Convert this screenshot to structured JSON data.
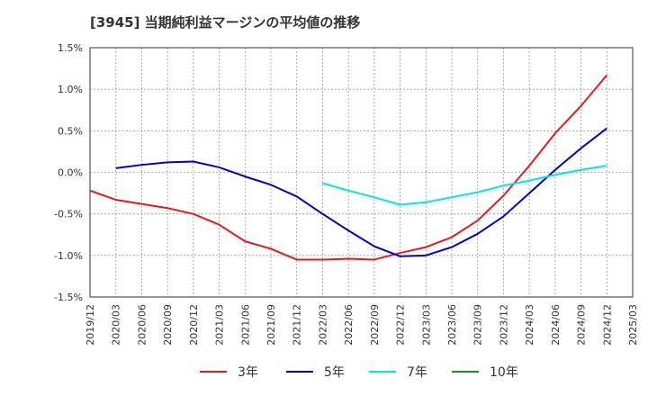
{
  "title": "[3945]  当期純利益マージンの平均値の推移",
  "chart_data": {
    "type": "line",
    "title": "[3945]  当期純利益マージンの平均値の推移",
    "xlabel": "",
    "ylabel": "",
    "x_ticks": [
      "2019/12",
      "2020/03",
      "2020/06",
      "2020/09",
      "2020/12",
      "2021/03",
      "2021/06",
      "2021/09",
      "2021/12",
      "2022/03",
      "2022/06",
      "2022/09",
      "2022/12",
      "2023/03",
      "2023/06",
      "2023/09",
      "2023/12",
      "2024/03",
      "2024/06",
      "2024/09",
      "2024/12",
      "2025/03"
    ],
    "y_ticks": [
      "1.5%",
      "1.0%",
      "0.5%",
      "0.0%",
      "-0.5%",
      "-1.0%",
      "-1.5%"
    ],
    "y_tick_values": [
      1.5,
      1.0,
      0.5,
      0.0,
      -0.5,
      -1.0,
      -1.5
    ],
    "ylim": [
      -1.5,
      1.5
    ],
    "grid": true,
    "legend_position": "bottom",
    "series": [
      {
        "name": "3年",
        "color": "#e41a1c",
        "values": [
          -0.22,
          -0.33,
          -0.38,
          -0.43,
          -0.5,
          -0.63,
          -0.83,
          -0.92,
          -1.05,
          -1.05,
          -1.04,
          -1.05,
          -0.97,
          -0.9,
          -0.78,
          -0.58,
          -0.28,
          0.08,
          0.47,
          0.8,
          1.17,
          null
        ]
      },
      {
        "name": "5年",
        "color": "#0000cc",
        "values": [
          null,
          0.05,
          0.09,
          0.12,
          0.13,
          0.06,
          -0.05,
          -0.15,
          -0.29,
          -0.5,
          -0.7,
          -0.89,
          -1.01,
          -1.0,
          -0.9,
          -0.74,
          -0.53,
          -0.25,
          0.03,
          0.29,
          0.53,
          null
        ]
      },
      {
        "name": "7年",
        "color": "#00e5ee",
        "values": [
          null,
          null,
          null,
          null,
          null,
          null,
          null,
          null,
          null,
          -0.13,
          -0.22,
          -0.3,
          -0.39,
          -0.36,
          -0.3,
          -0.24,
          -0.16,
          -0.1,
          -0.03,
          0.03,
          0.08,
          null
        ]
      },
      {
        "name": "10年",
        "color": "#228b22",
        "values": [
          null,
          null,
          null,
          null,
          null,
          null,
          null,
          null,
          null,
          null,
          null,
          null,
          null,
          null,
          null,
          null,
          null,
          null,
          null,
          null,
          null,
          null
        ]
      }
    ]
  }
}
